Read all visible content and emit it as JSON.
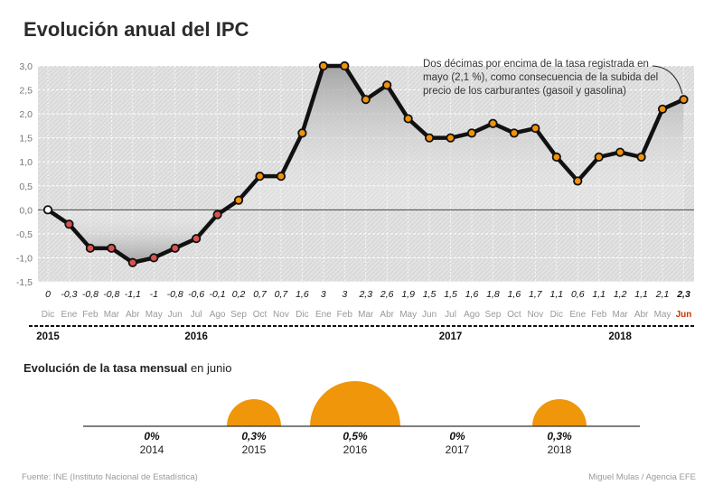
{
  "title": "Evolución anual del IPC",
  "annotation": "Dos décimas por encima de la tasa registrada en mayo (2,1 %), como consecuencia de la subida del precio de los carburantes (gasoil y gasolina)",
  "source": "Fuente: INE (Instituto Nacional de Estadística)",
  "credit": "Miguel Mulas / Agencia EFE",
  "colors": {
    "line": "#111111",
    "dot_orange": "#f0920a",
    "dot_red": "#d9534f",
    "accent_red": "#cc3300",
    "bubble": "#f0960a",
    "grid": "#cfcfcf"
  },
  "chart_data": [
    {
      "type": "area",
      "title": "Evolución anual del IPC",
      "ylim": [
        -1.5,
        3.0
      ],
      "yticks": [
        "-1,5",
        "-1,0",
        "-0,5",
        "0,0",
        "0,5",
        "1,0",
        "1,5",
        "2,0",
        "2,5",
        "3,0"
      ],
      "ytick_values": [
        -1.5,
        -1.0,
        -0.5,
        0.0,
        0.5,
        1.0,
        1.5,
        2.0,
        2.5,
        3.0
      ],
      "months": [
        "Dic",
        "Ene",
        "Feb",
        "Mar",
        "Abr",
        "May",
        "Jun",
        "Jul",
        "Ago",
        "Sep",
        "Oct",
        "Nov",
        "Dic",
        "Ene",
        "Feb",
        "Mar",
        "Abr",
        "May",
        "Jun",
        "Jul",
        "Ago",
        "Sep",
        "Oct",
        "Nov",
        "Dic",
        "Ene",
        "Feb",
        "Mar",
        "Abr",
        "May",
        "Jun"
      ],
      "values": [
        0,
        -0.3,
        -0.8,
        -0.8,
        -1.1,
        -1.0,
        -0.8,
        -0.6,
        -0.1,
        0.2,
        0.7,
        0.7,
        1.6,
        3.0,
        3.0,
        2.3,
        2.6,
        1.9,
        1.5,
        1.5,
        1.6,
        1.8,
        1.6,
        1.7,
        1.1,
        0.6,
        1.1,
        1.2,
        1.1,
        2.1,
        2.3
      ],
      "value_labels": [
        "0",
        "-0,3",
        "-0,8",
        "-0,8",
        "-1,1",
        "-1",
        "-0,8",
        "-0,6",
        "-0,1",
        "0,2",
        "0,7",
        "0,7",
        "1,6",
        "3",
        "3",
        "2,3",
        "2,6",
        "1,9",
        "1,5",
        "1,5",
        "1,6",
        "1,8",
        "1,6",
        "1,7",
        "1,1",
        "0,6",
        "1,1",
        "1,2",
        "1,1",
        "2,1",
        "2,3"
      ],
      "years": [
        {
          "label": "2015",
          "month_index": 0
        },
        {
          "label": "2016",
          "month_index": 7
        },
        {
          "label": "2017",
          "month_index": 19
        },
        {
          "label": "2018",
          "month_index": 27
        }
      ]
    },
    {
      "type": "bubble",
      "title_bold": "Evolución de la tasa mensual",
      "title_rest": " en junio",
      "categories": [
        "2014",
        "2015",
        "2016",
        "2017",
        "2018"
      ],
      "values": [
        0,
        0.3,
        0.5,
        0,
        0.3
      ],
      "value_labels": [
        "0%",
        "0,3%",
        "0,5%",
        "0%",
        "0,3%"
      ]
    }
  ]
}
